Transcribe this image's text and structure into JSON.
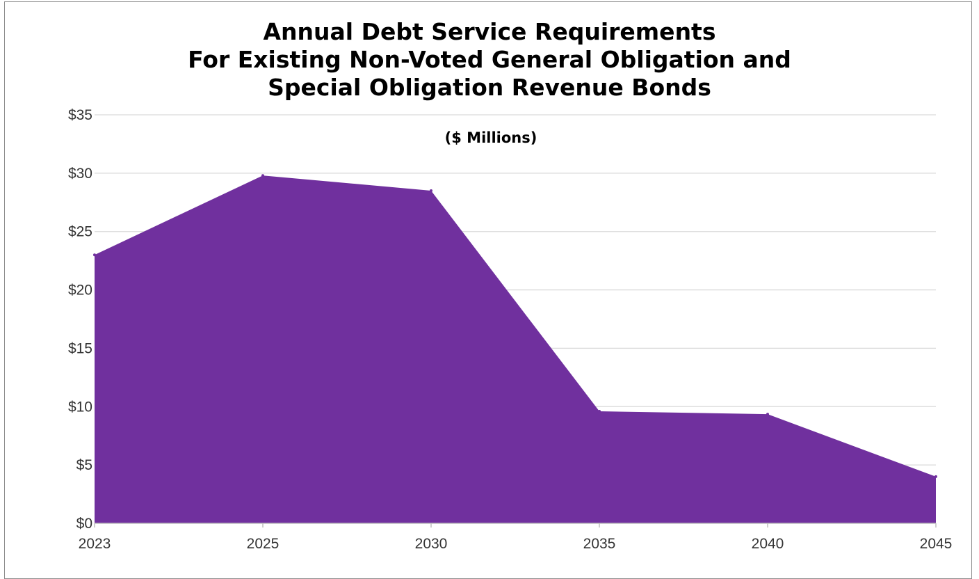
{
  "chart_data": {
    "type": "area",
    "title_lines": [
      "Annual Debt Service Requirements",
      "For Existing Non-Voted General Obligation and",
      "Special Obligation Revenue Bonds"
    ],
    "subtitle": "($ Millions)",
    "x": [
      2023,
      2025,
      2030,
      2035,
      2040,
      2045
    ],
    "x_tick_labels": [
      "2023",
      "2025",
      "2030",
      "2035",
      "2040",
      "2045"
    ],
    "values": [
      23.0,
      29.8,
      28.5,
      9.6,
      9.35,
      4.0
    ],
    "y_ticks": [
      0,
      5,
      10,
      15,
      20,
      25,
      30,
      35
    ],
    "y_tick_labels": [
      "$0",
      "$5",
      "$10",
      "$15",
      "$20",
      "$25",
      "$30",
      "$35"
    ],
    "ylim": [
      0,
      35
    ],
    "xlabel": "",
    "ylabel": "",
    "grid": true,
    "legend": "none",
    "colors": {
      "area": "#70309e",
      "grid": "#d9d9d9",
      "axis": "#bfbfbf",
      "text": "#333333"
    }
  }
}
